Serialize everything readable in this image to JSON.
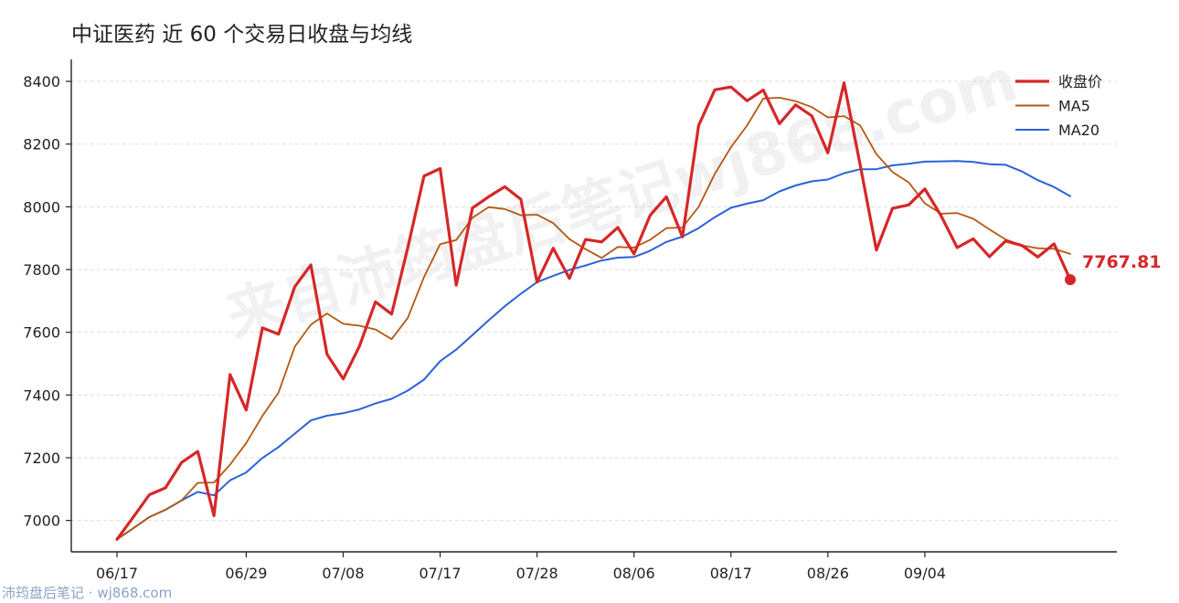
{
  "title": "中证医药 近 60 个交易日收盘与均线",
  "watermark": "来自沛筠盘后笔记wj868.com",
  "footer": "沛筠盘后笔记 · wj868.com",
  "colors": {
    "close": "#d62728",
    "ma5": "#b5580f",
    "ma20": "#2a62d8",
    "axis": "#222222",
    "grid": "#dddddd"
  },
  "chart_data": {
    "type": "line",
    "ylim": [
      6900,
      8470
    ],
    "yticks": [
      7000,
      7200,
      7400,
      7600,
      7800,
      8000,
      8200,
      8400
    ],
    "x_tick_labels": [
      {
        "index": 0,
        "label": "06/17"
      },
      {
        "index": 8,
        "label": "06/29"
      },
      {
        "index": 14,
        "label": "07/08"
      },
      {
        "index": 20,
        "label": "07/17"
      },
      {
        "index": 26,
        "label": "07/28"
      },
      {
        "index": 32,
        "label": "08/06"
      },
      {
        "index": 38,
        "label": "08/17"
      },
      {
        "index": 44,
        "label": "08/26"
      },
      {
        "index": 50,
        "label": "09/04"
      }
    ],
    "grid": true,
    "legend_position": "top-right",
    "last_value_label": "7767.81",
    "series": [
      {
        "name": "收盘价",
        "values": [
          6940,
          7010,
          7082,
          7104,
          7185,
          7220,
          7015,
          7465,
          7352,
          7614,
          7594,
          7745,
          7815,
          7530,
          7451,
          7555,
          7697,
          7658,
          7870,
          8098,
          8122,
          7750,
          7996,
          8032,
          8064,
          8024,
          7760,
          7868,
          7772,
          7896,
          7888,
          7934,
          7850,
          7973,
          8032,
          7904,
          8259,
          8373,
          8382,
          8338,
          8372,
          8265,
          8325,
          8290,
          8172,
          8395,
          8133,
          7862,
          7995,
          8006,
          8057,
          7972,
          7870,
          7898,
          7841,
          7891,
          7877,
          7840,
          7882,
          7767.81
        ]
      },
      {
        "name": "MA5",
        "values": [
          6940,
          6975,
          7011,
          7034,
          7064,
          7120,
          7121,
          7178,
          7247,
          7333,
          7408,
          7554,
          7624,
          7660,
          7627,
          7621,
          7609,
          7578,
          7646,
          7776,
          7881,
          7894,
          7965,
          7999,
          7993,
          7973,
          7975,
          7948,
          7897,
          7865,
          7837,
          7872,
          7870,
          7895,
          7932,
          7934,
          8000,
          8105,
          8190,
          8259,
          8345,
          8348,
          8337,
          8318,
          8285,
          8289,
          8259,
          8168,
          8111,
          8078,
          8011,
          7978,
          7980,
          7962,
          7928,
          7896,
          7877,
          7868,
          7866,
          7850
        ]
      },
      {
        "name": "MA20",
        "values": [
          6940,
          6975,
          7011,
          7034,
          7064,
          7091,
          7080,
          7128,
          7153,
          7199,
          7234,
          7277,
          7319,
          7334,
          7342,
          7354,
          7373,
          7388,
          7414,
          7449,
          7508,
          7545,
          7591,
          7638,
          7683,
          7723,
          7760,
          7780,
          7799,
          7813,
          7829,
          7838,
          7840,
          7860,
          7888,
          7905,
          7932,
          7967,
          7997,
          8010,
          8021,
          8049,
          8068,
          8081,
          8087,
          8107,
          8120,
          8120,
          8132,
          8137,
          8144,
          8145,
          8146,
          8143,
          8136,
          8134,
          8113,
          8085,
          8063,
          8034
        ]
      }
    ]
  }
}
